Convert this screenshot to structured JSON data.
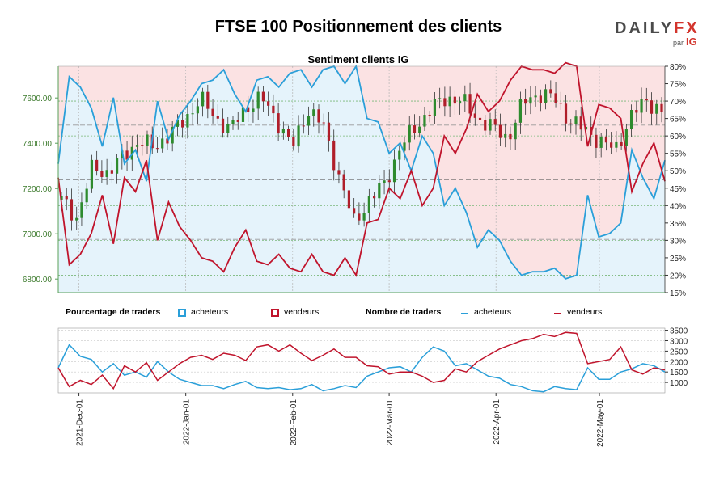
{
  "title": "FTSE 100 Positionnement des clients",
  "logo": {
    "brand_a": "DAILY",
    "brand_b": "FX",
    "par": "par",
    "ig": "IG"
  },
  "colors": {
    "buyers": "#2a9fd9",
    "sellers": "#c0142c",
    "buy_fill": "#e5f3fb",
    "sell_fill": "#fbe2e3",
    "candle_up": "#2e8b2e",
    "candle_down": "#b01e2a"
  },
  "legend": {
    "pct_title": "Pourcentage de traders",
    "pct_buyers": "acheteurs",
    "pct_sellers": "vendeurs",
    "count_title": "Nombre de traders",
    "count_buyers": "acheteurs",
    "count_sellers": "vendeurs"
  },
  "chart_data": [
    {
      "type": "line",
      "title": "Sentiment clients IG",
      "left_axis": {
        "ticks": [
          "6800.00",
          "7000.00",
          "7200.00",
          "7400.00",
          "7600.00"
        ],
        "range": [
          6740,
          7740
        ]
      },
      "right_axis": {
        "ticks": [
          "15%",
          "20%",
          "25%",
          "30%",
          "35%",
          "40%",
          "45%",
          "50%",
          "55%",
          "60%",
          "65%",
          "70%",
          "75%",
          "80%"
        ],
        "range": [
          15,
          80
        ]
      },
      "x_ticks": [
        "2021-Dec-01",
        "2022-Jan-01",
        "2022-Feb-01",
        "2022-Mar-01",
        "2022-Apr-01",
        "2022-May-01"
      ],
      "x_range": [
        "2021-Nov-25",
        "2022-May-20"
      ],
      "reference_lines": {
        "price_dashed": [
          7480,
          7240,
          6975
        ],
        "pct_green": [
          20,
          30,
          40,
          60,
          70
        ]
      },
      "price_close_weekly": [
        7150,
        7070,
        7290,
        7270,
        7340,
        7410,
        7380,
        7440,
        7500,
        7600,
        7510,
        7460,
        7560,
        7600,
        7500,
        7380,
        7550,
        7480,
        7260,
        7050,
        7150,
        7220,
        7380,
        7470,
        7550,
        7600,
        7590,
        7510,
        7470,
        7420,
        7580,
        7620,
        7600,
        7500,
        7460,
        7410,
        7370,
        7520,
        7590,
        7540
      ],
      "series": [
        {
          "name": "acheteurs",
          "unit": "%",
          "values": [
            52,
            77,
            74,
            68,
            57,
            71,
            52,
            56,
            47,
            70,
            59,
            66,
            70,
            75,
            76,
            79,
            72,
            67,
            76,
            77,
            74,
            78,
            79,
            74,
            79,
            80,
            75,
            80,
            65,
            64,
            55,
            58,
            50,
            60,
            55,
            40,
            45,
            38,
            28,
            33,
            30,
            24,
            20,
            21,
            21,
            22,
            19,
            20,
            43,
            31,
            32,
            35,
            56,
            48,
            42,
            53
          ]
        },
        {
          "name": "vendeurs",
          "unit": "%",
          "values": [
            48,
            23,
            26,
            32,
            43,
            29,
            48,
            44,
            53,
            30,
            41,
            34,
            30,
            25,
            24,
            21,
            28,
            33,
            24,
            23,
            26,
            22,
            21,
            26,
            21,
            20,
            25,
            20,
            35,
            36,
            45,
            42,
            50,
            40,
            45,
            60,
            55,
            62,
            72,
            67,
            70,
            76,
            80,
            79,
            79,
            78,
            81,
            80,
            57,
            69,
            68,
            65,
            44,
            52,
            58,
            47
          ]
        }
      ]
    },
    {
      "type": "line",
      "title": "Nombre de traders",
      "y_ticks": [
        "1000",
        "1500",
        "2000",
        "2500",
        "3000",
        "3500"
      ],
      "y_range": [
        500,
        3600
      ],
      "series": [
        {
          "name": "acheteurs",
          "values": [
            1700,
            2800,
            2250,
            2100,
            1500,
            1900,
            1350,
            1500,
            1250,
            2000,
            1500,
            1150,
            1000,
            850,
            850,
            700,
            900,
            1050,
            750,
            700,
            750,
            650,
            700,
            900,
            600,
            700,
            850,
            750,
            1300,
            1500,
            1700,
            1750,
            1500,
            2200,
            2700,
            2500,
            1800,
            1900,
            1600,
            1300,
            1200,
            900,
            800,
            600,
            550,
            800,
            700,
            650,
            1700,
            1150,
            1150,
            1500,
            1650,
            1900,
            1800,
            1500
          ]
        },
        {
          "name": "vendeurs",
          "values": [
            1700,
            800,
            1100,
            900,
            1350,
            700,
            1800,
            1500,
            1950,
            1100,
            1500,
            1900,
            2200,
            2300,
            2100,
            2400,
            2300,
            2050,
            2700,
            2800,
            2500,
            2800,
            2400,
            2050,
            2300,
            2600,
            2200,
            2200,
            1800,
            1750,
            1400,
            1500,
            1500,
            1300,
            1000,
            1100,
            1650,
            1500,
            2000,
            2300,
            2600,
            2800,
            3000,
            3100,
            3300,
            3200,
            3400,
            3350,
            1900,
            2000,
            2100,
            2700,
            1600,
            1400,
            1700,
            1600
          ]
        }
      ]
    }
  ]
}
